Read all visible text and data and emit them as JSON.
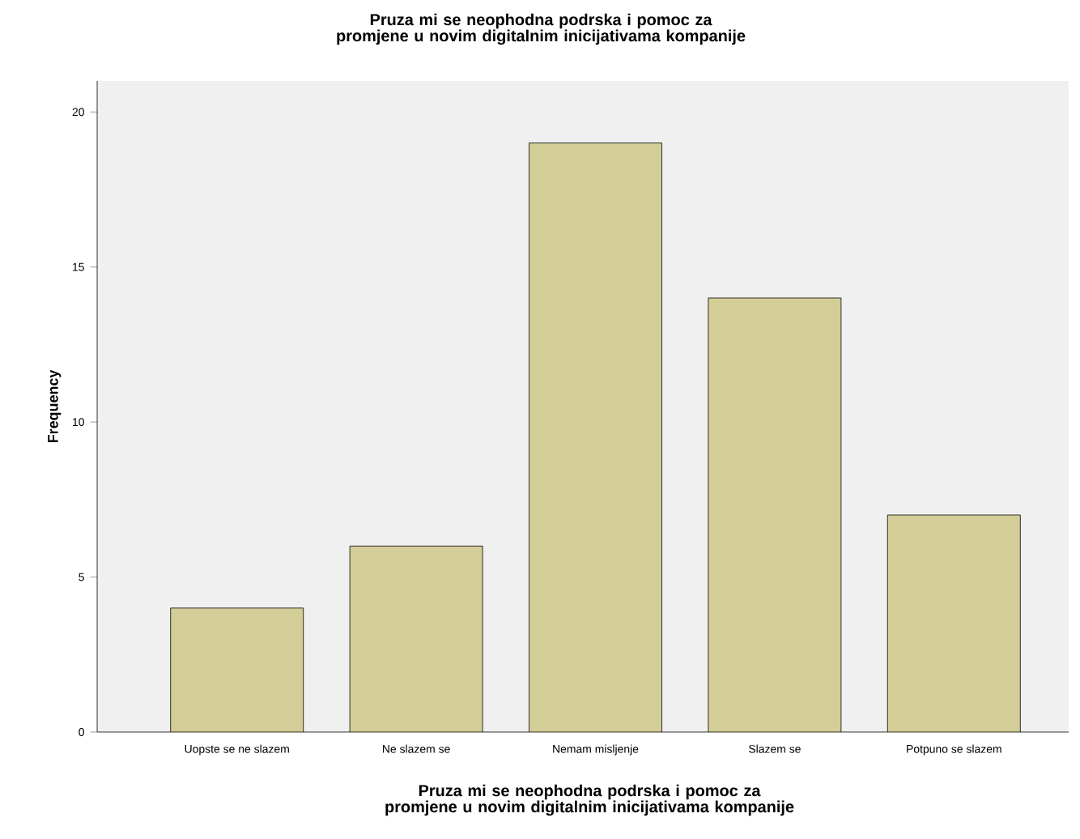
{
  "chart_data": {
    "type": "bar",
    "title": "Pruza mi se neophodna podrska i pomoc za promjene u novim digitalnim inicijativama  kompanije",
    "xlabel": "Pruza mi se neophodna podrska i pomoc za promjene u novim digitalnim inicijativama  kompanije",
    "ylabel": "Frequency",
    "categories": [
      "Uopste se ne slazem",
      "Ne slazem se",
      "Nemam misljenje",
      "Slazem se",
      "Potpuno se slazem"
    ],
    "values": [
      4,
      6,
      19,
      14,
      7
    ],
    "color": "#d3ce97",
    "ylim": [
      0,
      21
    ],
    "yticks": [
      0,
      5,
      10,
      15,
      20
    ]
  }
}
